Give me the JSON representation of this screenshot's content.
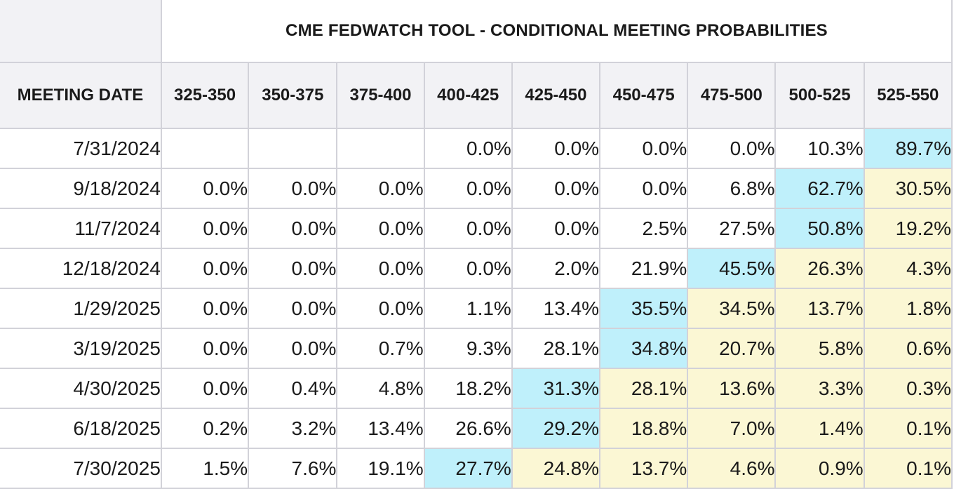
{
  "table": {
    "title": "CME FEDWATCH TOOL - CONDITIONAL MEETING PROBABILITIES",
    "date_header": "MEETING DATE",
    "rate_ranges": [
      "325-350",
      "350-375",
      "375-400",
      "400-425",
      "425-450",
      "450-475",
      "475-500",
      "500-525",
      "525-550"
    ],
    "colors": {
      "highest_probability": "#bff0fb",
      "above_highest": "#fbf7d4",
      "header_bg": "#f2f2f5",
      "border": "#d2d2d9"
    },
    "rows": [
      {
        "date": "7/31/2024",
        "values": [
          "",
          "",
          "",
          "0.0%",
          "0.0%",
          "0.0%",
          "0.0%",
          "10.3%",
          "89.7%"
        ]
      },
      {
        "date": "9/18/2024",
        "values": [
          "0.0%",
          "0.0%",
          "0.0%",
          "0.0%",
          "0.0%",
          "0.0%",
          "6.8%",
          "62.7%",
          "30.5%"
        ]
      },
      {
        "date": "11/7/2024",
        "values": [
          "0.0%",
          "0.0%",
          "0.0%",
          "0.0%",
          "0.0%",
          "2.5%",
          "27.5%",
          "50.8%",
          "19.2%"
        ]
      },
      {
        "date": "12/18/2024",
        "values": [
          "0.0%",
          "0.0%",
          "0.0%",
          "0.0%",
          "2.0%",
          "21.9%",
          "45.5%",
          "26.3%",
          "4.3%"
        ]
      },
      {
        "date": "1/29/2025",
        "values": [
          "0.0%",
          "0.0%",
          "0.0%",
          "1.1%",
          "13.4%",
          "35.5%",
          "34.5%",
          "13.7%",
          "1.8%"
        ]
      },
      {
        "date": "3/19/2025",
        "values": [
          "0.0%",
          "0.0%",
          "0.7%",
          "9.3%",
          "28.1%",
          "34.8%",
          "20.7%",
          "5.8%",
          "0.6%"
        ]
      },
      {
        "date": "4/30/2025",
        "values": [
          "0.0%",
          "0.4%",
          "4.8%",
          "18.2%",
          "31.3%",
          "28.1%",
          "13.6%",
          "3.3%",
          "0.3%"
        ]
      },
      {
        "date": "6/18/2025",
        "values": [
          "0.2%",
          "3.2%",
          "13.4%",
          "26.6%",
          "29.2%",
          "18.8%",
          "7.0%",
          "1.4%",
          "0.1%"
        ]
      },
      {
        "date": "7/30/2025",
        "values": [
          "1.5%",
          "7.6%",
          "19.1%",
          "27.7%",
          "24.8%",
          "13.7%",
          "4.6%",
          "0.9%",
          "0.1%"
        ]
      }
    ]
  }
}
